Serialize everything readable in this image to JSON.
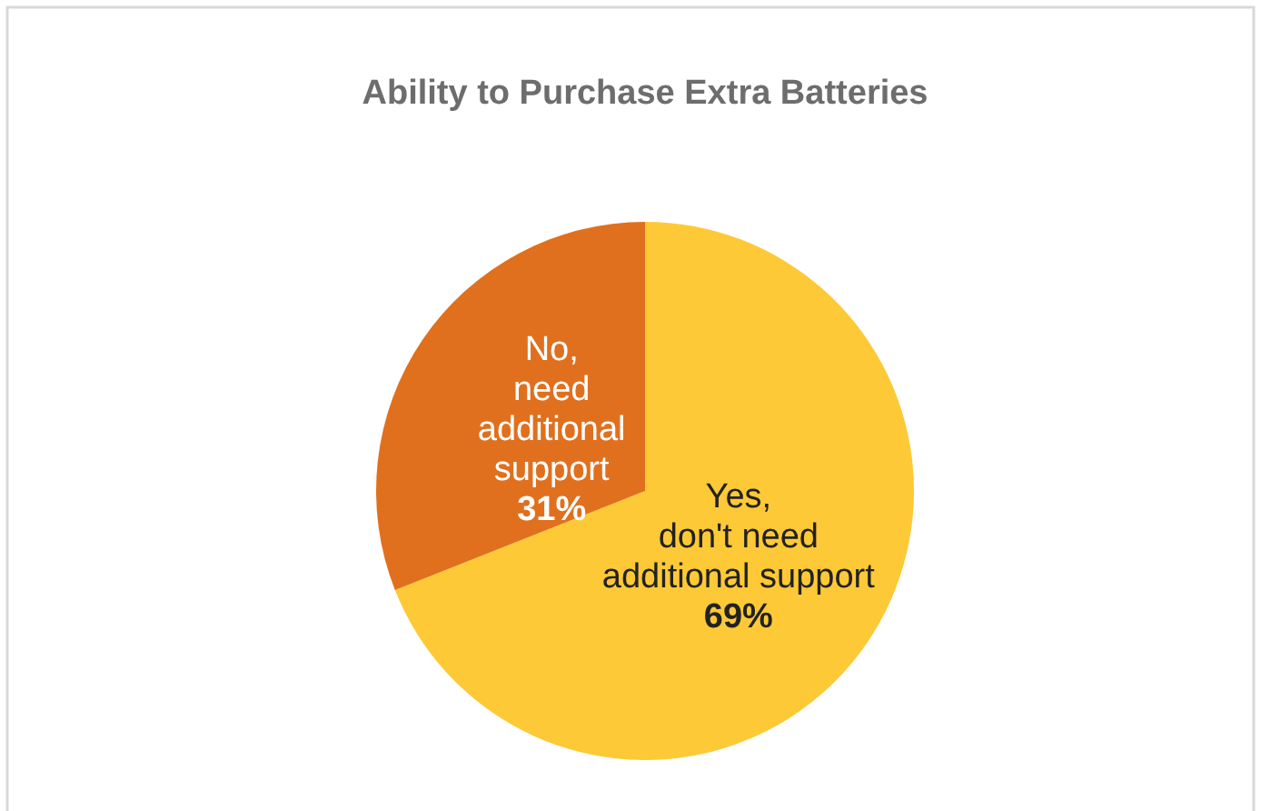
{
  "chart_data": {
    "type": "pie",
    "title": "Ability to Purchase Extra Batteries",
    "categories": [
      "Yes,\ndon't need\nadditional support",
      "No,\nneed\nadditional\nsupport"
    ],
    "values": [
      69,
      31
    ],
    "colors": [
      "#fec936",
      "#e0701e"
    ],
    "value_labels": [
      "69%",
      "31%"
    ]
  }
}
